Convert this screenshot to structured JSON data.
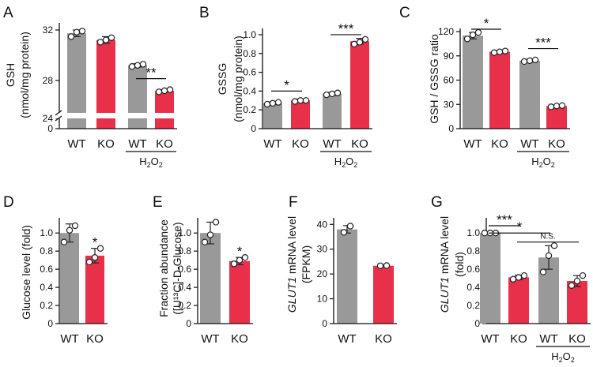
{
  "colors": {
    "wt": "#999999",
    "ko": "#e8304a",
    "axis": "#111111"
  },
  "chart_data": [
    {
      "type": "bar",
      "panel": "A",
      "categories": [
        "WT",
        "KO",
        "WT",
        "KO"
      ],
      "group_label": "H2O2",
      "ylabel": "GSH",
      "ylabel2": "(nmol/mg protein)",
      "axis_break": true,
      "ticks": [
        "0",
        "24",
        "28",
        "32"
      ],
      "ylim": [
        24,
        32.5
      ],
      "values": [
        31.7,
        31.1,
        28.8,
        26.5
      ],
      "errors": [
        0.3,
        0.3,
        0.15,
        0.1
      ],
      "points": [
        [
          31.4,
          31.8,
          31.9
        ],
        [
          30.9,
          31.1,
          31.3
        ],
        [
          28.7,
          28.8,
          28.9
        ],
        [
          26.4,
          26.5,
          26.6
        ]
      ],
      "colors": [
        "wt",
        "ko",
        "wt",
        "ko"
      ],
      "brackets": [
        {
          "from": 2,
          "to": 3,
          "label": "**",
          "y": 27.6
        }
      ]
    },
    {
      "type": "bar",
      "panel": "B",
      "categories": [
        "WT",
        "KO",
        "WT",
        "KO"
      ],
      "group_label": "H2O2",
      "ylabel": "GSSG",
      "ylabel2": "(nmol/mg protein)",
      "ticks": [
        "0",
        "0.2",
        "0.4",
        "0.6",
        "0.8",
        "1.0"
      ],
      "ylim": [
        0,
        1.05
      ],
      "values": [
        0.27,
        0.3,
        0.37,
        0.93
      ],
      "errors": [
        0.015,
        0.015,
        0.015,
        0.03
      ],
      "points": [
        [
          0.26,
          0.27,
          0.28
        ],
        [
          0.29,
          0.3,
          0.3
        ],
        [
          0.36,
          0.37,
          0.38
        ],
        [
          0.9,
          0.92,
          0.95
        ]
      ],
      "colors": [
        "wt",
        "ko",
        "wt",
        "ko"
      ],
      "brackets": [
        {
          "from": 0,
          "to": 1,
          "label": "*",
          "y": 0.4
        },
        {
          "from": 2,
          "to": 3,
          "label": "***",
          "y": 1.0
        }
      ]
    },
    {
      "type": "bar",
      "panel": "C",
      "categories": [
        "WT",
        "KO",
        "WT",
        "KO"
      ],
      "group_label": "H2O2",
      "ylabel": "GSH / GSSG ratio",
      "ticks": [
        "0",
        "30",
        "60",
        "90",
        "120"
      ],
      "ylim": [
        0,
        122
      ],
      "values": [
        115,
        95,
        84,
        28
      ],
      "errors": [
        4,
        1.5,
        1.5,
        1
      ],
      "points": [
        [
          111,
          116,
          119
        ],
        [
          94,
          95,
          96
        ],
        [
          83,
          84,
          85
        ],
        [
          27,
          28,
          28.5
        ]
      ],
      "colors": [
        "wt",
        "ko",
        "wt",
        "ko"
      ],
      "brackets": [
        {
          "from": 0,
          "to": 1,
          "label": "*",
          "y": 123
        },
        {
          "from": 2,
          "to": 3,
          "label": "***",
          "y": 99
        }
      ]
    },
    {
      "type": "bar",
      "panel": "D",
      "categories": [
        "WT",
        "KO"
      ],
      "ylabel": "Glucose level (fold)",
      "ticks": [
        "0",
        "0.2",
        "0.4",
        "0.6",
        "0.8",
        "1.0"
      ],
      "ylim": [
        0,
        1.15
      ],
      "values": [
        1.0,
        0.75
      ],
      "errors": [
        0.1,
        0.08
      ],
      "points": [
        [
          0.9,
          1.03,
          1.08
        ],
        [
          0.68,
          0.73,
          0.83
        ]
      ],
      "colors": [
        "wt",
        "ko"
      ],
      "stars": [
        {
          "index": 1,
          "label": "*"
        }
      ]
    },
    {
      "type": "bar",
      "panel": "E",
      "categories": [
        "WT",
        "KO"
      ],
      "ylabel": "Fraction abundance",
      "ylabel2": "([U¹³C]-D-Glucose)",
      "ticks": [
        "0",
        "0.2",
        "0.4",
        "0.6",
        "0.8",
        "1.0"
      ],
      "ylim": [
        0,
        1.15
      ],
      "values": [
        1.0,
        0.69
      ],
      "errors": [
        0.12,
        0.04
      ],
      "points": [
        [
          0.9,
          0.98,
          1.12
        ],
        [
          0.66,
          0.7,
          0.73
        ]
      ],
      "colors": [
        "wt",
        "ko"
      ],
      "stars": [
        {
          "index": 1,
          "label": "*"
        }
      ]
    },
    {
      "type": "bar",
      "panel": "F",
      "categories": [
        "WT",
        "KO"
      ],
      "ylabel": "GLUT1 mRNA level",
      "ylabel2": "(FPKM)",
      "ticks": [
        "0",
        "10",
        "20",
        "30",
        "40"
      ],
      "ylim": [
        0,
        42
      ],
      "values": [
        38,
        23.3
      ],
      "errors": [
        1.5,
        0.2
      ],
      "points": [
        [
          36.8,
          39.3
        ],
        [
          23.3,
          23.4
        ]
      ],
      "colors": [
        "wt",
        "ko"
      ]
    },
    {
      "type": "bar",
      "panel": "G",
      "categories": [
        "WT",
        "KO",
        "WT",
        "KO"
      ],
      "group_label": "H2O2",
      "ylabel": "GLUT1 mRNA level",
      "ylabel2": "(fold)",
      "ticks": [
        "0",
        "0.2",
        "0.4",
        "0.6",
        "0.8",
        "1.0"
      ],
      "ylim": [
        0,
        1.15
      ],
      "values": [
        1.0,
        0.51,
        0.73,
        0.47
      ],
      "errors": [
        0,
        0.025,
        0.13,
        0.06
      ],
      "points": [
        [
          1.0,
          1.0,
          1.0
        ],
        [
          0.49,
          0.51,
          0.53
        ],
        [
          0.57,
          0.75,
          0.86
        ],
        [
          0.42,
          0.47,
          0.53
        ]
      ],
      "colors": [
        "wt",
        "ko",
        "wt",
        "ko"
      ],
      "brackets": [
        {
          "from": 0,
          "to": 1,
          "label": "***",
          "y": 1.08
        },
        {
          "from": 0,
          "to": 2,
          "label": "*",
          "y": 1.0
        },
        {
          "from": 1,
          "to": 3,
          "label": "N.S.",
          "y": 0.9
        }
      ]
    }
  ]
}
